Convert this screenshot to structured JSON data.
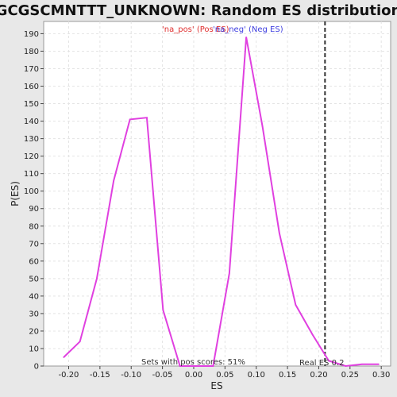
{
  "chart_data": {
    "type": "line",
    "title": "GCGSCMNTTT_UNKNOWN: Random ES distribution",
    "xlabel": "ES",
    "ylabel": "P(ES)",
    "xlim": [
      -0.24,
      0.315
    ],
    "ylim": [
      0,
      197
    ],
    "x_ticks": [
      "-0.20",
      "-0.15",
      "-0.10",
      "-0.05",
      "0.00",
      "0.05",
      "0.10",
      "0.15",
      "0.20",
      "0.25",
      "0.30"
    ],
    "x_tick_values": [
      -0.2,
      -0.15,
      -0.1,
      -0.05,
      0.0,
      0.05,
      0.1,
      0.15,
      0.2,
      0.25,
      0.3
    ],
    "y_ticks": [
      "0",
      "10",
      "20",
      "30",
      "40",
      "50",
      "60",
      "70",
      "80",
      "90",
      "100",
      "110",
      "120",
      "130",
      "140",
      "150",
      "160",
      "170",
      "180",
      "190"
    ],
    "y_tick_values": [
      0,
      10,
      20,
      30,
      40,
      50,
      60,
      70,
      80,
      90,
      100,
      110,
      120,
      130,
      140,
      150,
      160,
      170,
      180,
      190
    ],
    "grid": true,
    "line_color": "#e040e0",
    "series": [
      {
        "x": [
          -0.208,
          -0.182,
          -0.155,
          -0.128,
          -0.102,
          -0.075,
          -0.049,
          -0.022,
          0.004,
          0.031,
          0.057,
          0.084,
          0.11,
          0.137,
          0.163,
          0.19,
          0.216,
          0.243,
          0.269,
          0.296
        ],
        "values": [
          5,
          14,
          50,
          106,
          141,
          142,
          32,
          0,
          0,
          0,
          53,
          188,
          137,
          76,
          35,
          18,
          3,
          0,
          1,
          1
        ]
      }
    ],
    "legend": [
      "'na_pos' (Pos ES)",
      "'na_neg' (Neg ES)"
    ],
    "legend_placement": "top-center",
    "real_es": 0.21,
    "real_es_label": "Real ES 0.2",
    "pos_scores_label": "Sets with pos scores: 51%"
  }
}
